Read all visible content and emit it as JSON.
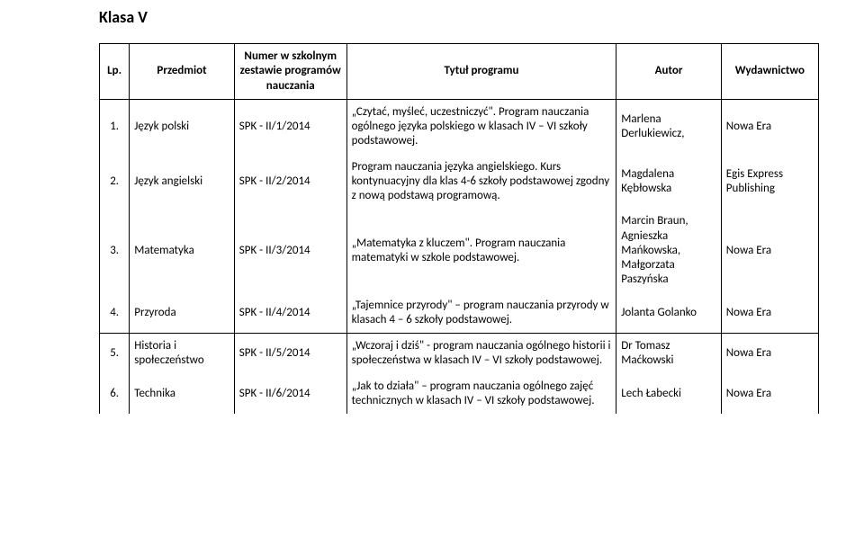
{
  "title": "Klasa V",
  "columns": [
    "Lp.",
    "Przedmiot",
    "Numer w szkolnym zestawie programów nauczania",
    "Tytuł programu",
    "Autor",
    "Wydawnictwo"
  ],
  "rows": [
    {
      "lp": "1.",
      "subject": "Język polski",
      "code": "SPK - II/1/2014",
      "program": "„Czytać, myśleć, uczestniczyć\". Program nauczania ogólnego języka polskiego w klasach IV – VI szkoły podstawowej.",
      "author": "Marlena Derlukiewicz,",
      "publisher": "Nowa Era"
    },
    {
      "lp": "2.",
      "subject": "Język angielski",
      "code": "SPK - II/2/2014",
      "program": "Program nauczania języka angielskiego. Kurs kontynuacyjny dla klas 4-6 szkoły podstawowej zgodny z nową podstawą programową.",
      "author": "Magdalena Kębłowska",
      "publisher": "Egis Express Publishing"
    },
    {
      "lp": "3.",
      "subject": "Matematyka",
      "code": "SPK - II/3/2014",
      "program": "„Matematyka z kluczem\". Program nauczania matematyki w szkole podstawowej.",
      "author": "Marcin Braun, Agnieszka Mańkowska, Małgorzata Paszyńska",
      "publisher": "Nowa Era"
    },
    {
      "lp": "4.",
      "subject": "Przyroda",
      "code": "SPK - II/4/2014",
      "program": "„Tajemnice przyrody\" – program nauczania przyrody w klasach 4 – 6 szkoły podstawowej.",
      "author": "Jolanta Golanko",
      "publisher": "Nowa Era"
    },
    {
      "lp": "5.",
      "subject": "Historia i społeczeństwo",
      "code": "SPK - II/5/2014",
      "program": "„Wczoraj i dziś\" - program nauczania ogólnego historii i społeczeństwa w  klasach IV – VI szkoły podstawowej.",
      "author": "Dr Tomasz Maćkowski",
      "publisher": "Nowa Era"
    },
    {
      "lp": "6.",
      "subject": "Technika",
      "code": "SPK - II/6/2014",
      "program": "„Jak to działa\" – program nauczania ogólnego zajęć technicznych w klasach IV – VI szkoły podstawowej.",
      "author": "Lech Łabecki",
      "publisher": "Nowa Era"
    }
  ]
}
